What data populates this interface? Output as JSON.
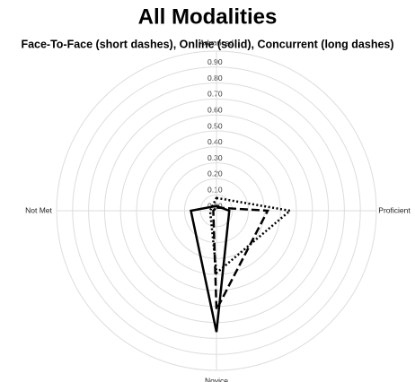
{
  "chart_data": {
    "type": "radar",
    "title": "All Modalities",
    "subtitle": "Face-To-Face (short dashes), Online (solid), Concurrent (long dashes)",
    "categories": [
      "Advanced",
      "Proficient",
      "Novice",
      "Not Met"
    ],
    "series": [
      {
        "color": "#000000",
        "style": "dotted",
        "values": [
          0.08,
          0.46,
          0.39,
          0.04
        ]
      },
      {
        "color": "#000000",
        "style": "solid",
        "values": [
          0.03,
          0.08,
          0.76,
          0.16
        ]
      },
      {
        "color": "#000000",
        "style": "dashed",
        "values": [
          0.02,
          0.32,
          0.62,
          0.02
        ]
      }
    ],
    "ylim": [
      0,
      1.0
    ],
    "yticks": [
      {
        "value": 0,
        "label": "0.00"
      },
      {
        "value": 0.1,
        "label": "0.10"
      },
      {
        "value": 0.2,
        "label": "0.20"
      },
      {
        "value": 0.3,
        "label": "0.30"
      },
      {
        "value": 0.4,
        "label": "0.40"
      },
      {
        "value": 0.5,
        "label": "0.50"
      },
      {
        "value": 0.6,
        "label": "0.60"
      },
      {
        "value": 0.7,
        "label": "0.70"
      },
      {
        "value": 0.8,
        "label": "0.80"
      },
      {
        "value": 0.9,
        "label": "0.90"
      }
    ],
    "grid": true
  }
}
